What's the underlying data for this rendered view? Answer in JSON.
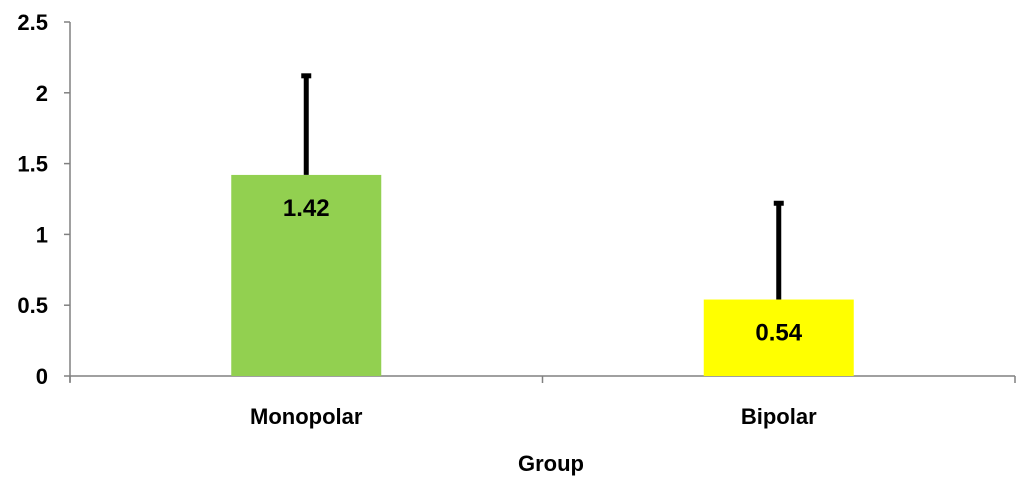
{
  "chart_data": {
    "type": "bar",
    "categories": [
      "Monopolar",
      "Bipolar"
    ],
    "values": [
      1.42,
      0.54
    ],
    "value_labels": [
      "1.42",
      "0.54"
    ],
    "error_upper": [
      2.12,
      1.22
    ],
    "colors": [
      "#92d050",
      "#ffff00"
    ],
    "title": "",
    "xlabel": "Group",
    "ylabel": "",
    "ylim": [
      0,
      2.5
    ],
    "yticks": [
      0,
      0.5,
      1,
      1.5,
      2,
      2.5
    ],
    "ytick_labels": [
      "0",
      "0.5",
      "1",
      "1.5",
      "2",
      "2.5"
    ],
    "grid": false,
    "legend": "none"
  }
}
